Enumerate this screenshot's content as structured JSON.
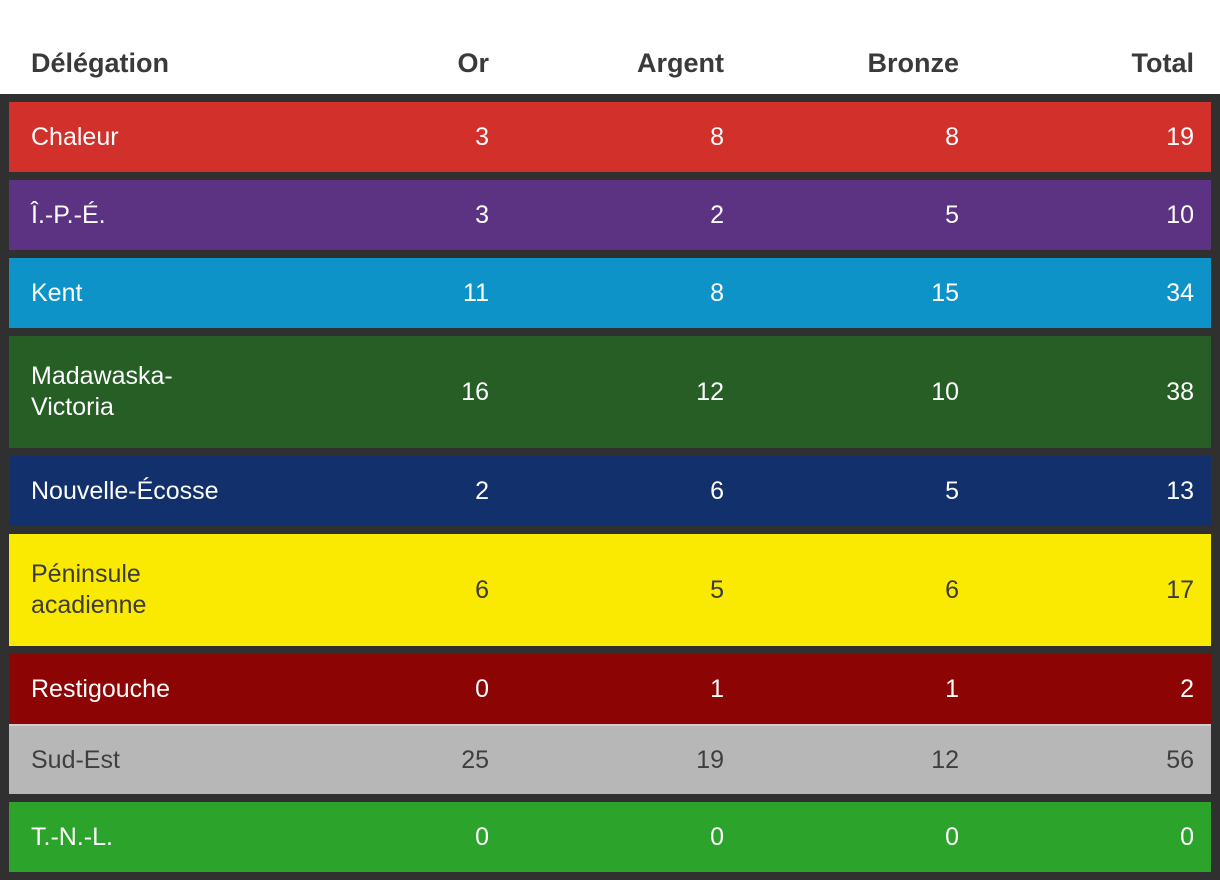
{
  "table": {
    "columns": [
      {
        "label": "Délégation"
      },
      {
        "label": "Or"
      },
      {
        "label": "Argent"
      },
      {
        "label": "Bronze"
      },
      {
        "label": "Total"
      }
    ],
    "rows": [
      {
        "name": "Chaleur",
        "or": "3",
        "argent": "8",
        "bronze": "8",
        "total": "19",
        "bg": "#d2302b",
        "fg": "#fcfcfc"
      },
      {
        "name": "Î.-P.-É.",
        "or": "3",
        "argent": "2",
        "bronze": "5",
        "total": "10",
        "bg": "#5c3282",
        "fg": "#fcfcfc"
      },
      {
        "name": "Kent",
        "or": "11",
        "argent": "8",
        "bronze": "15",
        "total": "34",
        "bg": "#0e93c9",
        "fg": "#fcfcfc"
      },
      {
        "name": "Madawaska-Victoria",
        "or": "16",
        "argent": "12",
        "bronze": "10",
        "total": "38",
        "bg": "#265e26",
        "fg": "#fcfcfc"
      },
      {
        "name": "Nouvelle-Écosse",
        "or": "2",
        "argent": "6",
        "bronze": "5",
        "total": "13",
        "bg": "#12306b",
        "fg": "#fcfcfc"
      },
      {
        "name": "Péninsule acadienne",
        "or": "6",
        "argent": "5",
        "bronze": "6",
        "total": "17",
        "bg": "#fae900",
        "fg": "#3b3b3b"
      },
      {
        "name": "Restigouche",
        "or": "0",
        "argent": "1",
        "bronze": "1",
        "total": "2",
        "bg": "#8c0404",
        "fg": "#fcfcfc"
      },
      {
        "name": "Sud-Est",
        "or": "25",
        "argent": "19",
        "bronze": "12",
        "total": "56",
        "bg": "#b7b7b7",
        "fg": "#3f3f3f"
      },
      {
        "name": "T.-N.-L.",
        "or": "0",
        "argent": "0",
        "bronze": "0",
        "total": "0",
        "bg": "#2ca32b",
        "fg": "#fcfcfc"
      }
    ]
  },
  "colors": {
    "frame": "#303030",
    "header_text": "#3a3a3a",
    "page_background": "#ffffff",
    "thin_separator": "#cfcfcf"
  },
  "chart_data": {
    "type": "table",
    "title": "",
    "columns": [
      "Délégation",
      "Or",
      "Argent",
      "Bronze",
      "Total"
    ],
    "rows": [
      [
        "Chaleur",
        3,
        8,
        8,
        19
      ],
      [
        "Î.-P.-É.",
        3,
        2,
        5,
        10
      ],
      [
        "Kent",
        11,
        8,
        15,
        34
      ],
      [
        "Madawaska-Victoria",
        16,
        12,
        10,
        38
      ],
      [
        "Nouvelle-Écosse",
        2,
        6,
        5,
        13
      ],
      [
        "Péninsule acadienne",
        6,
        5,
        6,
        17
      ],
      [
        "Restigouche",
        0,
        1,
        1,
        2
      ],
      [
        "Sud-Est",
        25,
        19,
        12,
        56
      ],
      [
        "T.-N.-L.",
        0,
        0,
        0,
        0
      ]
    ],
    "row_colors": [
      "#d2302b",
      "#5c3282",
      "#0e93c9",
      "#265e26",
      "#12306b",
      "#fae900",
      "#8c0404",
      "#b7b7b7",
      "#2ca32b"
    ],
    "layout_hints": {
      "numeric_columns_right_aligned": true,
      "grid": "thick dark separators between rows except between Restigouche and Sud-Est"
    }
  }
}
